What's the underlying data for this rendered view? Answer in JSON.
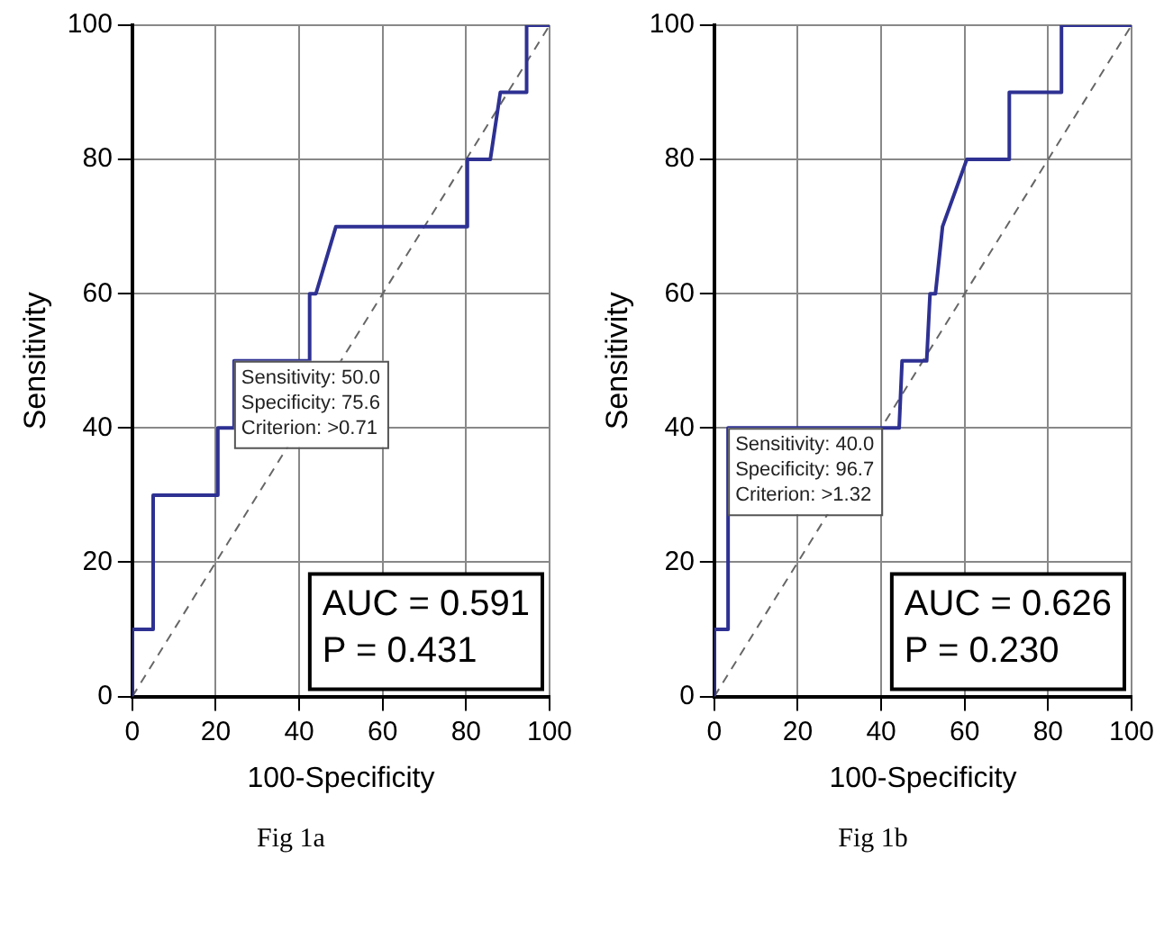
{
  "chart_data": [
    {
      "type": "line",
      "xlabel": "100-Specificity",
      "ylabel": "Sensitivity",
      "xlim": [
        0,
        100
      ],
      "ylim": [
        0,
        100
      ],
      "xticks": [
        0,
        20,
        40,
        60,
        80,
        100
      ],
      "yticks": [
        0,
        20,
        40,
        60,
        80,
        100
      ],
      "grid": true,
      "legend": false,
      "marker": "none",
      "series": [
        {
          "color": "#2e3192",
          "line_style": "solid",
          "x": [
            0,
            0,
            5,
            5,
            20.5,
            20.5,
            24.4,
            24.4,
            42.5,
            42.5,
            44,
            48.8,
            80.3,
            80.3,
            85.8,
            88.2,
            94.5,
            94.5,
            100
          ],
          "values": [
            0,
            10,
            10,
            30,
            30,
            40,
            40,
            50,
            50,
            60,
            60,
            70,
            70,
            80,
            80,
            90,
            90,
            100,
            100
          ]
        },
        {
          "color": "#666666",
          "line_style": "dashed",
          "x": [
            0,
            100
          ],
          "values": [
            0,
            100
          ]
        }
      ],
      "annotations": [
        {
          "text": "Sensitivity: 50.0\nSpecificity: 75.6\nCriterion: >0.71",
          "x": 24.4,
          "y": 50
        },
        "AUC = 0.591\nP = 0.431",
        "Fig 1a"
      ]
    },
    {
      "type": "line",
      "xlabel": "100-Specificity",
      "ylabel": "Sensitivity",
      "xlim": [
        0,
        100
      ],
      "ylim": [
        0,
        100
      ],
      "xticks": [
        0,
        20,
        40,
        60,
        80,
        100
      ],
      "yticks": [
        0,
        20,
        40,
        60,
        80,
        100
      ],
      "grid": true,
      "legend": false,
      "marker": "none",
      "series": [
        {
          "color": "#2e3192",
          "line_style": "solid",
          "x": [
            0,
            0,
            3.3,
            3.3,
            44.3,
            45,
            50.9,
            51.7,
            53,
            54.7,
            60.5,
            70.7,
            70.7,
            83.2,
            83.2,
            100
          ],
          "values": [
            0,
            10,
            10,
            40,
            40,
            50,
            50,
            60,
            60,
            70,
            80,
            80,
            90,
            90,
            100,
            100
          ]
        },
        {
          "color": "#666666",
          "line_style": "dashed",
          "x": [
            0,
            100
          ],
          "values": [
            0,
            100
          ]
        }
      ],
      "annotations": [
        {
          "text": "Sensitivity: 40.0\nSpecificity: 96.7\nCriterion: >1.32",
          "x": 3.3,
          "y": 40
        },
        "AUC = 0.626\nP = 0.230",
        "Fig 1b"
      ]
    }
  ]
}
